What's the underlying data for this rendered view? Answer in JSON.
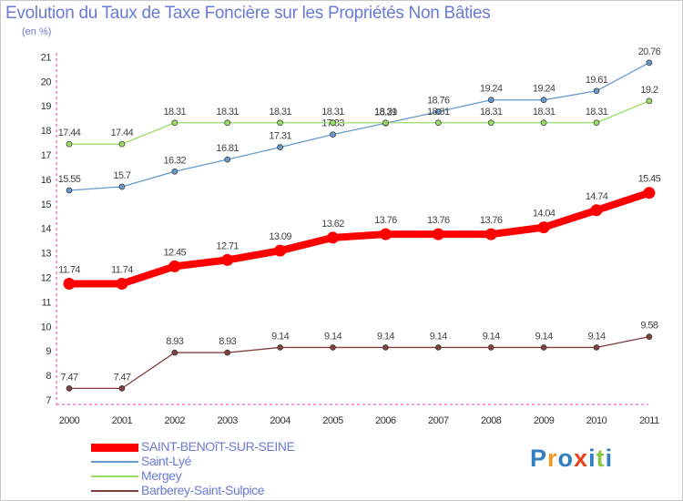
{
  "title": "Evolution du Taux de Taxe Foncière sur les Propriétés Non Bâties",
  "subtitle": "(en %)",
  "logo": {
    "text": "Proxiti",
    "colors": [
      "#2f7fc1",
      "#f39a1f",
      "#2f7fc1",
      "#e8421e",
      "#2f7fc1",
      "#8bc53f",
      "#2f7fc1"
    ]
  },
  "chart_data": {
    "type": "line",
    "x": [
      "2000",
      "2001",
      "2002",
      "2003",
      "2004",
      "2005",
      "2006",
      "2007",
      "2008",
      "2009",
      "2010",
      "2011"
    ],
    "ylim": [
      7,
      21
    ],
    "yticks": [
      "7",
      "8",
      "9",
      "10",
      "11",
      "12",
      "13",
      "14",
      "15",
      "16",
      "17",
      "18",
      "19",
      "20",
      "21"
    ],
    "grid": false,
    "legend_position": "bottom-left",
    "series": [
      {
        "name": "SAINT-BENOîT-SUR-SEINE",
        "color": "#ff0000",
        "emphasis": true,
        "values": [
          11.74,
          11.74,
          12.45,
          12.71,
          13.09,
          13.62,
          13.76,
          13.76,
          13.76,
          14.04,
          14.74,
          15.45
        ]
      },
      {
        "name": "Saint-Lyé",
        "color": "#6699cc",
        "emphasis": false,
        "values": [
          15.55,
          15.7,
          16.32,
          16.81,
          17.31,
          17.83,
          18.29,
          18.76,
          19.24,
          19.24,
          19.61,
          20.76
        ]
      },
      {
        "name": "Mergey",
        "color": "#99dd66",
        "emphasis": false,
        "values": [
          17.44,
          17.44,
          18.31,
          18.31,
          18.31,
          18.31,
          18.31,
          18.31,
          18.31,
          18.31,
          18.31,
          19.2
        ]
      },
      {
        "name": "Barberey-Saint-Sulpice",
        "color": "#804040",
        "emphasis": false,
        "values": [
          7.47,
          7.47,
          8.93,
          8.93,
          9.14,
          9.14,
          9.14,
          9.14,
          9.14,
          9.14,
          9.14,
          9.58
        ]
      }
    ]
  }
}
